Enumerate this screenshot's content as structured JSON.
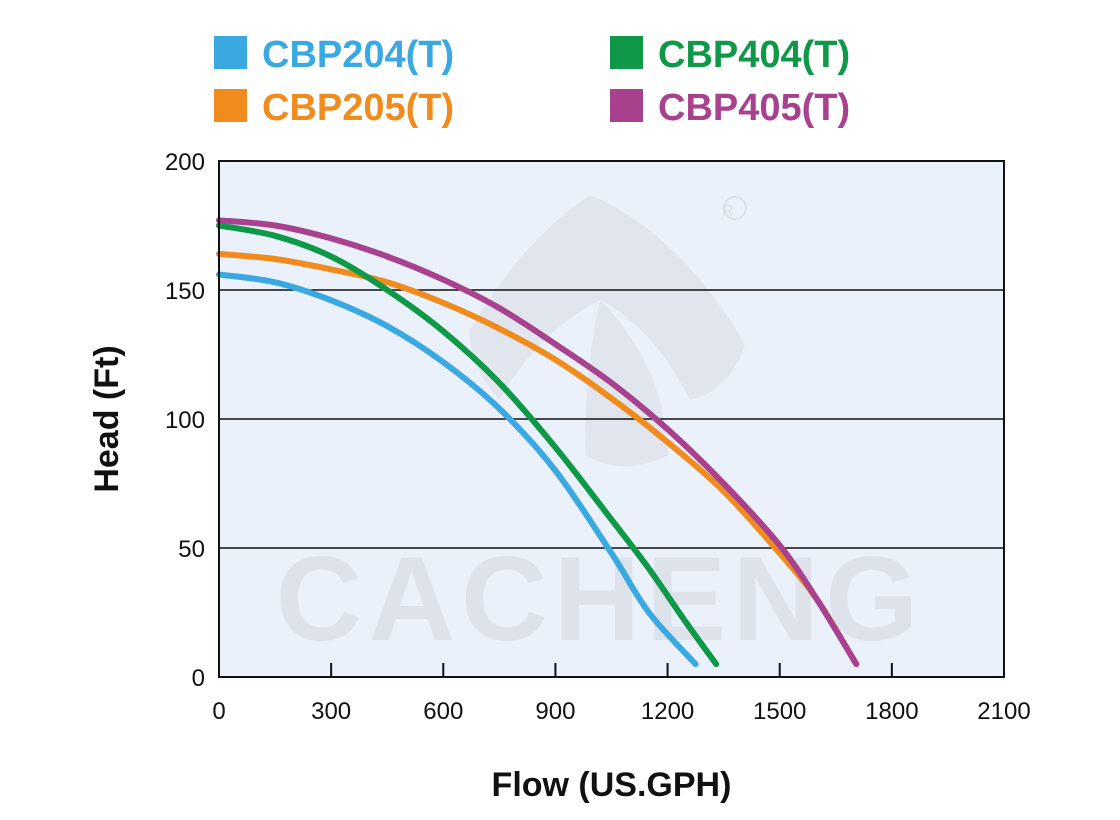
{
  "chart_data": {
    "type": "line",
    "xlabel": "Flow (US.GPH)",
    "ylabel": "Head (Ft)",
    "xlim": [
      0,
      2100
    ],
    "ylim": [
      0,
      200
    ],
    "x_ticks": [
      0,
      300,
      600,
      900,
      1200,
      1500,
      1800,
      2100
    ],
    "y_ticks": [
      0,
      50,
      100,
      150,
      200
    ],
    "grid": "horizontal",
    "legend_position": "top",
    "watermark": "CACHENG",
    "background_color": "#eaf1fb",
    "series": [
      {
        "name": "CBP204(T)",
        "color": "#3aa9e1",
        "x": [
          0,
          150,
          300,
          450,
          600,
          750,
          900,
          1050,
          1150,
          1275
        ],
        "y": [
          156,
          153,
          146,
          136,
          122,
          104,
          80,
          48,
          25,
          5
        ]
      },
      {
        "name": "CBP205(T)",
        "color": "#f08c1e",
        "x": [
          0,
          150,
          300,
          450,
          600,
          750,
          900,
          1050,
          1200,
          1350,
          1500,
          1600,
          1705
        ],
        "y": [
          164,
          162,
          158,
          153,
          145,
          135,
          123,
          108,
          91,
          72,
          48,
          30,
          5
        ]
      },
      {
        "name": "CBP404(T)",
        "color": "#0f9848",
        "x": [
          0,
          150,
          300,
          450,
          600,
          750,
          900,
          1050,
          1150,
          1250,
          1330
        ],
        "y": [
          175,
          171,
          163,
          150,
          134,
          114,
          89,
          61,
          42,
          21,
          5
        ]
      },
      {
        "name": "CBP405(T)",
        "color": "#a8418e",
        "x": [
          0,
          150,
          300,
          450,
          600,
          750,
          900,
          1050,
          1200,
          1350,
          1500,
          1600,
          1705
        ],
        "y": [
          177,
          175,
          170,
          163,
          154,
          143,
          129,
          114,
          96,
          75,
          51,
          30,
          5
        ]
      }
    ]
  }
}
